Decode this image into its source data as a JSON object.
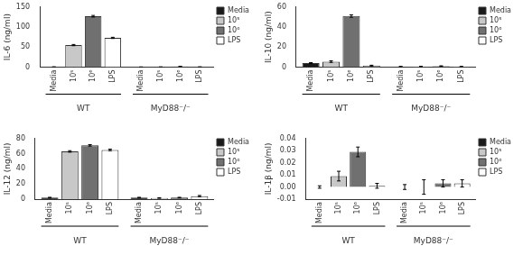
{
  "chart_data": [
    {
      "type": "bar",
      "ylabel": "IL-6 (ng/ml)",
      "categories": [
        "WT",
        "MyD88⁻/⁻"
      ],
      "series": [
        {
          "name": "Media",
          "color": "#1a1a1a",
          "values": [
            0.5,
            0.3
          ],
          "errors": [
            0.3,
            0.1
          ]
        },
        {
          "name": "10⁵",
          "color": "#c8c8c8",
          "values": [
            55,
            0.4
          ],
          "errors": [
            1.5,
            0.2
          ]
        },
        {
          "name": "10⁶",
          "color": "#707070",
          "values": [
            127,
            1.5
          ],
          "errors": [
            2.0,
            0.3
          ]
        },
        {
          "name": "LPS",
          "color": "#ffffff",
          "values": [
            73,
            0.5
          ],
          "errors": [
            1.5,
            0.2
          ]
        }
      ],
      "ylim": [
        0,
        150
      ],
      "yticks": [
        0,
        50,
        100,
        150
      ],
      "grid": false,
      "legend": "upper right"
    },
    {
      "type": "bar",
      "ylabel": "IL-10 (ng/ml)",
      "categories": [
        "WT",
        "MyD88⁻/⁻"
      ],
      "series": [
        {
          "name": "Media",
          "color": "#1a1a1a",
          "values": [
            4.0,
            0.5
          ],
          "errors": [
            0.5,
            0.2
          ]
        },
        {
          "name": "10⁵",
          "color": "#c8c8c8",
          "values": [
            5.5,
            0.5
          ],
          "errors": [
            0.8,
            0.3
          ]
        },
        {
          "name": "10⁶",
          "color": "#707070",
          "values": [
            51,
            1.0
          ],
          "errors": [
            1.2,
            0.3
          ]
        },
        {
          "name": "LPS",
          "color": "#ffffff",
          "values": [
            1.5,
            0.5
          ],
          "errors": [
            0.4,
            0.2
          ]
        }
      ],
      "ylim": [
        0,
        60
      ],
      "yticks": [
        0,
        20,
        40,
        60
      ],
      "grid": false,
      "legend": "upper right"
    },
    {
      "type": "bar",
      "ylabel": "IL-12 (ng/ml)",
      "categories": [
        "WT",
        "MyD88⁻/⁻"
      ],
      "series": [
        {
          "name": "Media",
          "color": "#1a1a1a",
          "values": [
            2.0,
            2.0
          ],
          "errors": [
            0.4,
            0.4
          ]
        },
        {
          "name": "10⁵",
          "color": "#c8c8c8",
          "values": [
            63,
            1.5
          ],
          "errors": [
            1.0,
            0.4
          ]
        },
        {
          "name": "10⁶",
          "color": "#707070",
          "values": [
            71,
            2.0
          ],
          "errors": [
            1.0,
            0.4
          ]
        },
        {
          "name": "LPS",
          "color": "#ffffff",
          "values": [
            65,
            4.0
          ],
          "errors": [
            1.0,
            0.8
          ]
        }
      ],
      "ylim": [
        0,
        80
      ],
      "yticks": [
        0,
        20,
        40,
        60,
        80
      ],
      "grid": false,
      "legend": "upper right"
    },
    {
      "type": "bar",
      "ylabel": "IL-1β (ng/ml)",
      "categories": [
        "WT",
        "MyD88⁻/⁻"
      ],
      "series": [
        {
          "name": "Media",
          "color": "#1a1a1a",
          "values": [
            0.0,
            0.0
          ],
          "errors": [
            0.001,
            0.002
          ]
        },
        {
          "name": "10⁵",
          "color": "#c8c8c8",
          "values": [
            0.009,
            0.0
          ],
          "errors": [
            0.004,
            0.006
          ]
        },
        {
          "name": "10⁶",
          "color": "#707070",
          "values": [
            0.029,
            0.003
          ],
          "errors": [
            0.004,
            0.003
          ]
        },
        {
          "name": "LPS",
          "color": "#ffffff",
          "values": [
            0.001,
            0.003
          ],
          "errors": [
            0.002,
            0.003
          ]
        }
      ],
      "ylim": [
        -0.01,
        0.04
      ],
      "yticks": [
        -0.01,
        {
          "value": 0,
          "label": "0.00"
        },
        0.01,
        0.02,
        0.03,
        0.04
      ],
      "grid": false,
      "legend": "upper right"
    }
  ]
}
